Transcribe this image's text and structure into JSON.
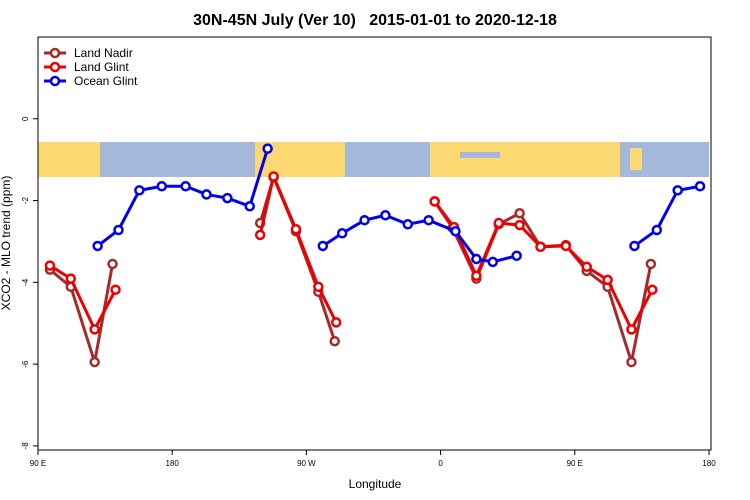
{
  "chart_data": {
    "type": "line",
    "title": "30N-45N July (Ver 10)   2015-01-01 to 2020-12-18",
    "x_label": "Longitude",
    "y_label": "XCO2 - MLO trend (ppm)",
    "xlim": [
      90,
      540
    ],
    "ylim": [
      -8.1,
      2
    ],
    "xticks": [
      {
        "value": 90,
        "label": "90 E"
      },
      180,
      {
        "value": 270,
        "label": "90 W"
      },
      {
        "value": 360,
        "label": "0"
      },
      {
        "value": 450,
        "label": "90 E"
      },
      {
        "value": 540,
        "label": "180"
      }
    ],
    "yticks": [
      0,
      -2,
      -4,
      -6,
      -8
    ],
    "legend": "top-left",
    "series": [
      {
        "name": "Land Nadir",
        "color": "#a52a2a",
        "x": [
          98,
          112,
          128,
          140,
          null,
          239,
          248,
          263,
          278,
          289,
          null,
          356,
          368,
          384,
          399,
          413,
          427,
          444,
          458,
          472,
          488,
          501
        ],
        "values": [
          -3.69,
          -4.11,
          -5.95,
          -3.55,
          null,
          -2.55,
          -1.43,
          -2.75,
          -4.23,
          -5.44,
          null,
          -2.02,
          -2.67,
          -3.91,
          -2.58,
          -2.31,
          -3.13,
          -3.09,
          -3.72,
          -4.11,
          -5.95,
          -3.55
        ]
      },
      {
        "name": "Land Glint",
        "color": "#ee0000",
        "x": [
          98,
          112,
          128,
          142,
          null,
          239,
          248,
          263,
          278,
          290,
          null,
          356,
          369,
          384,
          399,
          413,
          427,
          444,
          458,
          472,
          488,
          502
        ],
        "values": [
          -3.59,
          -3.91,
          -5.15,
          -4.18,
          null,
          -2.84,
          -1.41,
          -2.7,
          -4.11,
          -4.98,
          null,
          -2.02,
          -2.65,
          -3.84,
          -2.55,
          -2.6,
          -3.13,
          -3.11,
          -3.62,
          -3.94,
          -5.15,
          -4.18
        ]
      },
      {
        "name": "Ocean Glint",
        "color": "#0000ee",
        "x": [
          130,
          144,
          158,
          173,
          189,
          203,
          217,
          232,
          244,
          null,
          281,
          294,
          309,
          323,
          338,
          352,
          370,
          384,
          395,
          411,
          null,
          490,
          505,
          519,
          534
        ],
        "values": [
          -3.11,
          -2.72,
          -1.75,
          -1.65,
          -1.65,
          -1.85,
          -1.94,
          -2.14,
          -0.73,
          null,
          -3.11,
          -2.8,
          -2.48,
          -2.36,
          -2.58,
          -2.48,
          -2.75,
          -3.43,
          -3.5,
          -3.35,
          null,
          -3.11,
          -2.72,
          -1.75,
          -1.65
        ]
      }
    ]
  }
}
